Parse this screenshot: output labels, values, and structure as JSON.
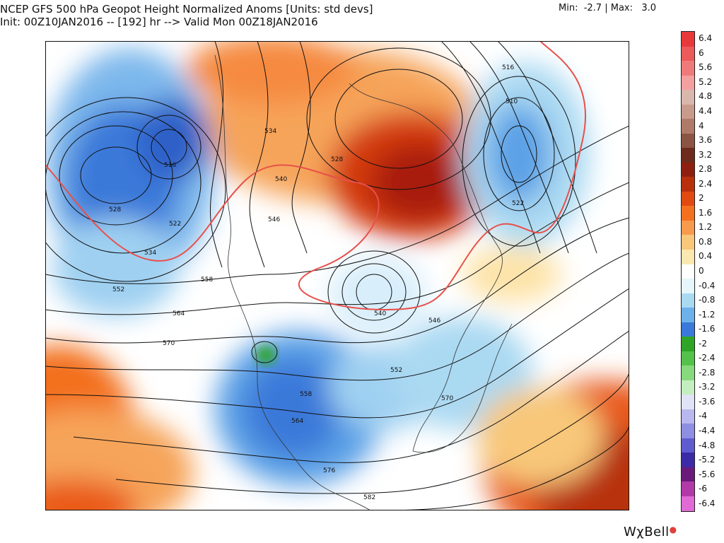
{
  "header": {
    "title": "NCEP GFS 500 hPa Geopot Height Normalized Anoms [Units: std devs]",
    "subtitle": "Init: 00Z10JAN2016 -- [192] hr --> Valid Mon 00Z18JAN2016",
    "minmax": "Min:  -2.7 | Max:   3.0"
  },
  "colorbar": {
    "labels": [
      "6.4",
      "6",
      "5.6",
      "5.2",
      "4.8",
      "4.4",
      "4",
      "3.6",
      "3.2",
      "2.8",
      "2.4",
      "2",
      "1.6",
      "1.2",
      "0.8",
      "0.4",
      "0",
      "-0.4",
      "-0.8",
      "-1.2",
      "-1.6",
      "-2",
      "-2.4",
      "-2.8",
      "-3.2",
      "-3.6",
      "-4",
      "-4.4",
      "-4.8",
      "-5.2",
      "-5.6",
      "-6",
      "-6.4"
    ],
    "colors": [
      "#e8393a",
      "#ec5a5a",
      "#f07a7a",
      "#f4a0a0",
      "#dab7ad",
      "#c89a8c",
      "#b07a6a",
      "#8c5444",
      "#6e2a1c",
      "#8e1f10",
      "#b8300c",
      "#e04a10",
      "#f3701f",
      "#f79a4c",
      "#f8c779",
      "#fbe8b1",
      "#ffffff",
      "#e6f6fb",
      "#aad9f2",
      "#6cb1ea",
      "#3a79d9",
      "#2fa528",
      "#54c24a",
      "#88d97e",
      "#c5eec0",
      "#e0e2f8",
      "#b8b8ee",
      "#8e8ee2",
      "#5f5ccf",
      "#3d2aa6",
      "#6a1a7a",
      "#b23aa8",
      "#e06ad6"
    ]
  },
  "contour_labels": [
    "516",
    "510",
    "522",
    "528",
    "534",
    "540",
    "546",
    "552",
    "558",
    "564",
    "570",
    "576",
    "582",
    "516",
    "522",
    "528",
    "534",
    "540",
    "546",
    "552",
    "558",
    "564",
    "570"
  ],
  "brand": "WχBell",
  "colors": {
    "warm": "#e05a20",
    "cold": "#3a79d9",
    "green": "#3aa52e"
  }
}
